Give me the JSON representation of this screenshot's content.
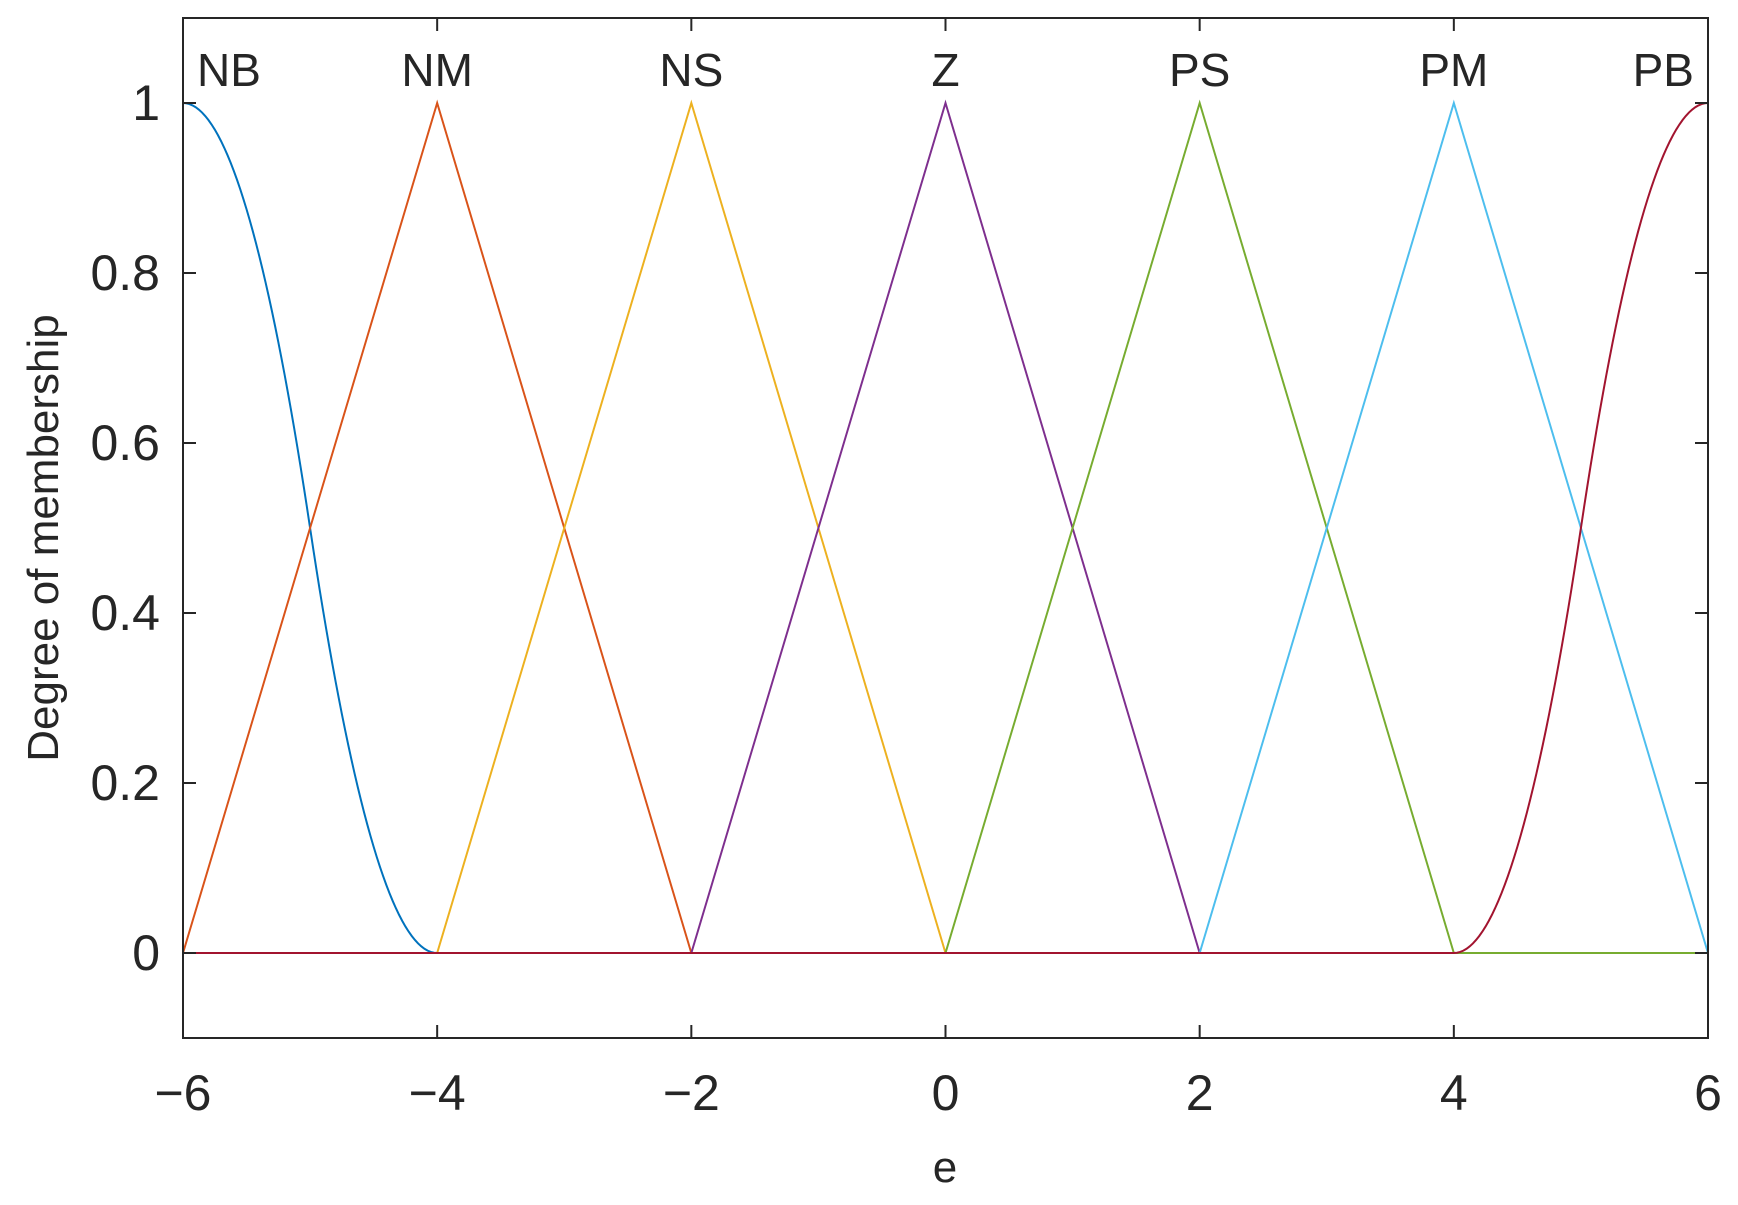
{
  "chart_data": {
    "type": "line",
    "title": "",
    "xlabel": "e",
    "ylabel": "Degree of membership",
    "xlim": [
      -6,
      6
    ],
    "ylim": [
      -0.1,
      1.1
    ],
    "xticks": [
      -6,
      -4,
      -2,
      0,
      2,
      4,
      6
    ],
    "xtick_labels": [
      "−6",
      "−4",
      "−2",
      "0",
      "2",
      "4",
      "6"
    ],
    "yticks": [
      0,
      0.2,
      0.4,
      0.6,
      0.8,
      1
    ],
    "ytick_labels": [
      "0",
      "0.2",
      "0.4",
      "0.6",
      "0.8",
      "1"
    ],
    "grid": false,
    "series": [
      {
        "name": "NB",
        "shape": "z-shaped",
        "params": [
          -6,
          -4
        ],
        "x": [
          -6,
          -5,
          -4,
          6
        ],
        "y": [
          1,
          0.5,
          0,
          0
        ],
        "color": "#0072BD"
      },
      {
        "name": "NM",
        "shape": "triangular",
        "params": [
          -6,
          -4,
          -2
        ],
        "x": [
          -6,
          -4,
          -2,
          6
        ],
        "y": [
          0,
          1,
          0,
          0
        ],
        "color": "#D95319"
      },
      {
        "name": "NS",
        "shape": "triangular",
        "params": [
          -4,
          -2,
          0
        ],
        "x": [
          -6,
          -4,
          -2,
          0,
          6
        ],
        "y": [
          0,
          0,
          1,
          0,
          0
        ],
        "color": "#EDB120"
      },
      {
        "name": "Z",
        "shape": "triangular",
        "params": [
          -2,
          0,
          2
        ],
        "x": [
          -6,
          -2,
          0,
          2,
          6
        ],
        "y": [
          0,
          0,
          1,
          0,
          0
        ],
        "color": "#7E2F8E"
      },
      {
        "name": "PS",
        "shape": "triangular",
        "params": [
          0,
          2,
          4
        ],
        "x": [
          -6,
          0,
          2,
          4,
          6
        ],
        "y": [
          0,
          0,
          1,
          0,
          0
        ],
        "color": "#77AC30"
      },
      {
        "name": "PM",
        "shape": "triangular",
        "params": [
          2,
          4,
          6
        ],
        "x": [
          -6,
          2,
          4,
          6
        ],
        "y": [
          0,
          0,
          1,
          0
        ],
        "color": "#4DBEEE"
      },
      {
        "name": "PB",
        "shape": "s-shaped",
        "params": [
          4,
          6
        ],
        "x": [
          -6,
          4,
          5,
          6
        ],
        "y": [
          0,
          0,
          0.5,
          1
        ],
        "color": "#A2142F"
      }
    ]
  }
}
